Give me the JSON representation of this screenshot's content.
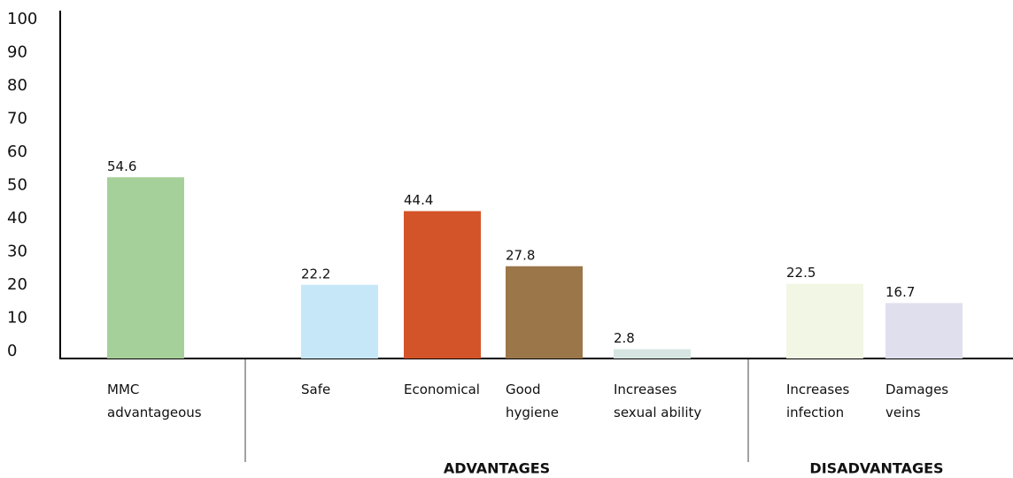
{
  "chart_data": {
    "type": "bar",
    "categories": [
      "MMC advantageous",
      "Safe",
      "Economical",
      "Good hygiene",
      "Increases sexual ability",
      "Increases infection",
      "Damages veins"
    ],
    "values": [
      54.6,
      22.2,
      44.4,
      27.8,
      2.8,
      22.5,
      16.7
    ],
    "colors": [
      "#a6d09a",
      "#c6e7f7",
      "#d35429",
      "#9a7649",
      "#d6e5e1",
      "#f2f6e4",
      "#dfdfee"
    ],
    "groups": [
      "ADVANTAGES",
      "DISADVANTAGES"
    ],
    "ylim": [
      0,
      100
    ],
    "yticks": [
      0,
      10,
      20,
      30,
      40,
      50,
      60,
      70,
      80,
      90,
      100
    ]
  }
}
